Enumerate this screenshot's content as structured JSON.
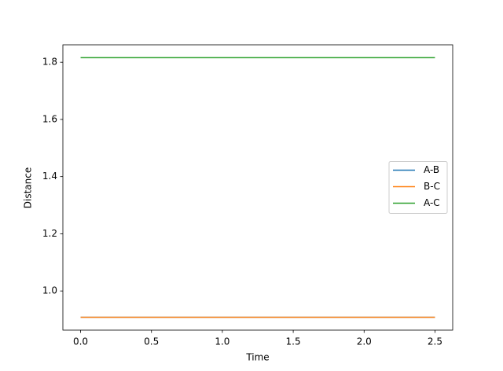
{
  "chart_data": {
    "type": "line",
    "xlabel": "Time",
    "ylabel": "Distance",
    "x": [
      0,
      2.5
    ],
    "series": [
      {
        "name": "A-B",
        "color": "#1f77b4",
        "values": [
          0.908,
          0.908
        ]
      },
      {
        "name": "B-C",
        "color": "#ff7f0e",
        "values": [
          0.908,
          0.908
        ]
      },
      {
        "name": "A-C",
        "color": "#2ca02c",
        "values": [
          1.816,
          1.816
        ]
      }
    ],
    "xlim": [
      -0.125,
      2.625
    ],
    "xticks": [
      {
        "value": 0,
        "label": "0.0"
      },
      0.5,
      {
        "value": 1,
        "label": "1.0"
      },
      1.5,
      {
        "value": 2,
        "label": "2.0"
      },
      2.5
    ],
    "ylim": [
      0.863,
      1.861
    ],
    "yticks": [
      {
        "value": 1,
        "label": "1.0"
      },
      1.2,
      1.4,
      1.6,
      1.8
    ],
    "grid": false,
    "legend": "center right"
  }
}
